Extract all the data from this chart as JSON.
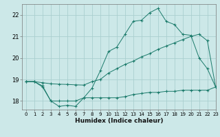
{
  "xlabel": "Humidex (Indice chaleur)",
  "x": [
    0,
    1,
    2,
    3,
    4,
    5,
    6,
    7,
    8,
    9,
    10,
    11,
    12,
    13,
    14,
    15,
    16,
    17,
    18,
    19,
    20,
    21,
    22,
    23
  ],
  "line1": [
    18.9,
    18.9,
    18.65,
    18.0,
    17.75,
    17.8,
    17.75,
    18.15,
    18.6,
    19.4,
    20.3,
    20.5,
    21.1,
    21.7,
    21.75,
    22.1,
    22.3,
    21.7,
    21.55,
    21.1,
    21.05,
    20.0,
    19.5,
    18.65
  ],
  "line2": [
    18.9,
    18.9,
    18.85,
    18.8,
    18.78,
    18.77,
    18.75,
    18.74,
    18.9,
    19.0,
    19.3,
    19.5,
    19.7,
    19.85,
    20.05,
    20.2,
    20.4,
    20.55,
    20.7,
    20.85,
    21.0,
    21.1,
    20.8,
    18.65
  ],
  "line3": [
    18.9,
    18.9,
    18.7,
    18.0,
    18.0,
    18.0,
    18.0,
    18.15,
    18.15,
    18.15,
    18.15,
    18.15,
    18.2,
    18.3,
    18.35,
    18.4,
    18.4,
    18.45,
    18.45,
    18.5,
    18.5,
    18.5,
    18.5,
    18.65
  ],
  "line_color": "#1a7a6a",
  "bg_color": "#cce8e8",
  "grid_color": "#aacfcf",
  "ylim": [
    17.6,
    22.5
  ],
  "xlim": [
    -0.5,
    23
  ],
  "yticks": [
    18,
    19,
    20,
    21,
    22
  ],
  "xticks": [
    0,
    1,
    2,
    3,
    4,
    5,
    6,
    7,
    8,
    9,
    10,
    11,
    12,
    13,
    14,
    15,
    16,
    17,
    18,
    19,
    20,
    21,
    22,
    23
  ],
  "ytick_fontsize": 6,
  "xtick_fontsize": 5,
  "xlabel_fontsize": 6.5
}
